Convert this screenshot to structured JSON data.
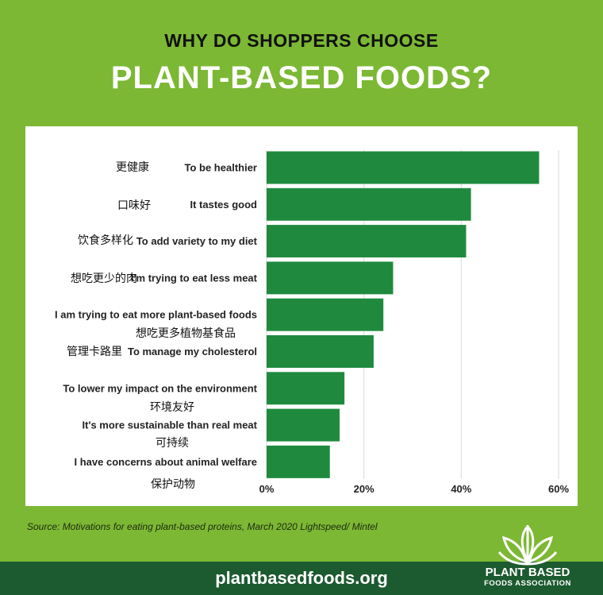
{
  "header": {
    "title_line1": "WHY DO SHOPPERS CHOOSE",
    "title_line2": "PLANT-BASED FOODS?"
  },
  "chart_data": {
    "type": "bar",
    "orientation": "horizontal",
    "categories": [
      "To be healthier",
      "It tastes good",
      "To add variety to my diet",
      "I'm trying to eat less meat",
      "I am trying to eat more plant-based foods",
      "To manage my cholesterol",
      "To lower my impact on the environment",
      "It's more sustainable than real meat",
      "I have concerns about animal welfare"
    ],
    "values": [
      56,
      42,
      41,
      26,
      24,
      22,
      16,
      15,
      13
    ],
    "x_ticks": [
      "0%",
      "20%",
      "40%",
      "60%"
    ],
    "xlim": [
      0,
      60
    ],
    "grid": true,
    "bar_color": "#1f8a3e",
    "annotations": [
      "更健康",
      "口味好",
      "饮食多样化",
      "想吃更少的肉",
      "想吃更多植物基食品",
      "管理卡路里",
      "环境友好",
      "可持续",
      "保护动物"
    ]
  },
  "source": "Source: Motivations for eating plant-based proteins, March 2020 Lightspeed/ Mintel",
  "footer": {
    "url": "plantbasedfoods.org",
    "logo_line1": "PLANT BASED",
    "logo_line2": "FOODS ASSOCIATION"
  },
  "colors": {
    "background": "#7cb834",
    "bar": "#1f8a3e",
    "footer": "#1c5a30",
    "panel": "#ffffff"
  }
}
